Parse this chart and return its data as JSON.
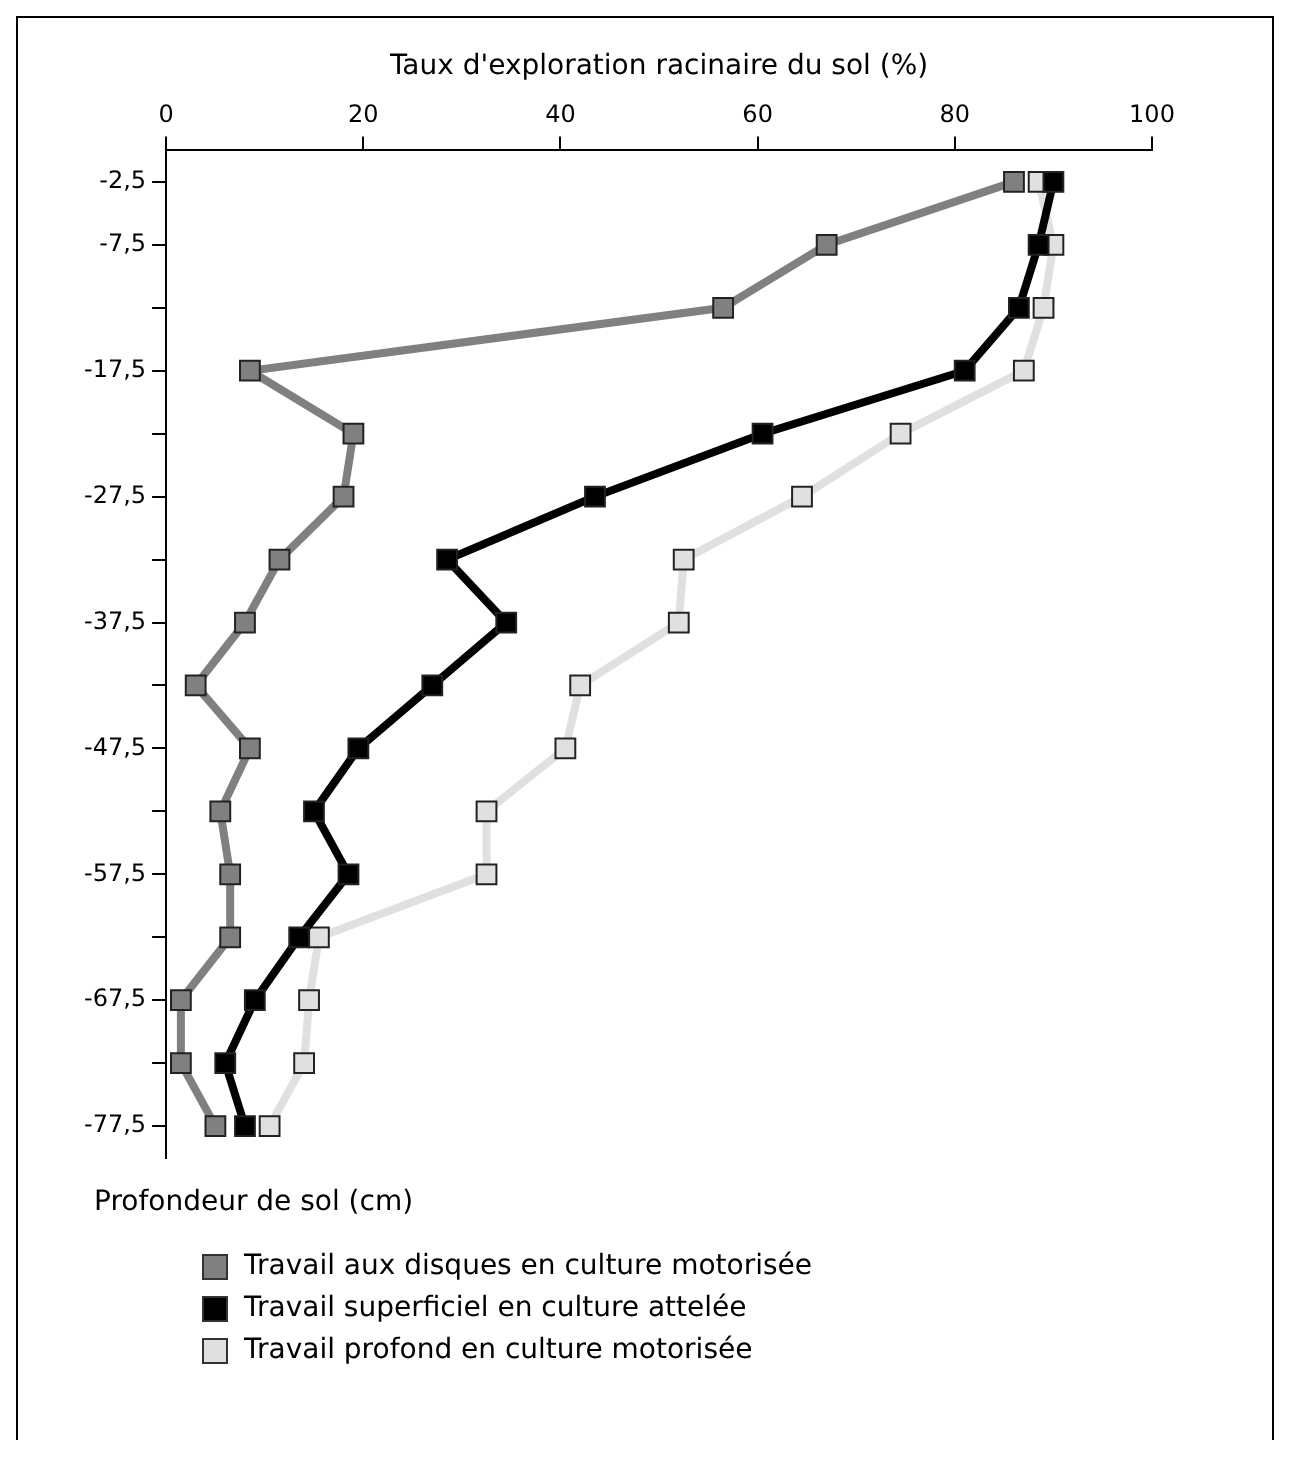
{
  "chart_data": {
    "type": "line",
    "xlabel": "Taux d'exploration racinaire du sol (%)",
    "ylabel": "Profondeur de sol (cm)",
    "xlim": [
      0,
      100
    ],
    "xticks": [
      0,
      20,
      40,
      60,
      80,
      100
    ],
    "ylim": [
      -80,
      0
    ],
    "yticks": [
      {
        "value": -2.5,
        "label": "-2,5"
      },
      {
        "value": -7.5,
        "label": "-7,5"
      },
      {
        "value": -12.5,
        "label": null
      },
      {
        "value": -17.5,
        "label": "-17,5"
      },
      {
        "value": -22.5,
        "label": null
      },
      {
        "value": -27.5,
        "label": "-27,5"
      },
      {
        "value": -32.5,
        "label": null
      },
      {
        "value": -37.5,
        "label": "-37,5"
      },
      {
        "value": -42.5,
        "label": null
      },
      {
        "value": -47.5,
        "label": "-47,5"
      },
      {
        "value": -52.5,
        "label": null
      },
      {
        "value": -57.5,
        "label": "-57,5"
      },
      {
        "value": -62.5,
        "label": null
      },
      {
        "value": -67.5,
        "label": "-67,5"
      },
      {
        "value": -72.5,
        "label": null
      },
      {
        "value": -77.5,
        "label": "-77,5"
      }
    ],
    "grid": false,
    "legend": "bottom",
    "marker": "square",
    "line_style": "solid",
    "series": [
      {
        "name": "Travail aux disques en culture motorisée",
        "color": "#808080",
        "x": [
          86,
          67,
          56.5,
          8.5,
          19,
          18,
          11.5,
          8,
          3,
          8.5,
          5.5,
          6.5,
          6.5,
          1.5,
          1.5,
          5
        ],
        "values": [
          -2.5,
          -7.5,
          -12.5,
          -17.5,
          -22.5,
          -27.5,
          -32.5,
          -37.5,
          -42.5,
          -47.5,
          -52.5,
          -57.5,
          -62.5,
          -67.5,
          -72.5,
          -77.5
        ]
      },
      {
        "name": "Travail superficiel en culture attelée",
        "color": "#000000",
        "x": [
          90,
          88.5,
          86.5,
          81,
          60.5,
          43.5,
          28.5,
          34.5,
          27,
          19.5,
          15,
          18.5,
          13.5,
          9,
          6,
          8
        ],
        "values": [
          -2.5,
          -7.5,
          -12.5,
          -17.5,
          -22.5,
          -27.5,
          -32.5,
          -37.5,
          -42.5,
          -47.5,
          -52.5,
          -57.5,
          -62.5,
          -67.5,
          -72.5,
          -77.5
        ]
      },
      {
        "name": "Travail profond en culture motorisée",
        "color": "#e0e0e0",
        "x": [
          88.5,
          90,
          89,
          87,
          74.5,
          64.5,
          52.5,
          52,
          42,
          40.5,
          32.5,
          32.5,
          15.5,
          14.5,
          14,
          10.5
        ],
        "values": [
          -2.5,
          -7.5,
          -12.5,
          -17.5,
          -22.5,
          -27.5,
          -32.5,
          -37.5,
          -42.5,
          -47.5,
          -52.5,
          -57.5,
          -62.5,
          -67.5,
          -72.5,
          -77.5
        ]
      }
    ]
  }
}
